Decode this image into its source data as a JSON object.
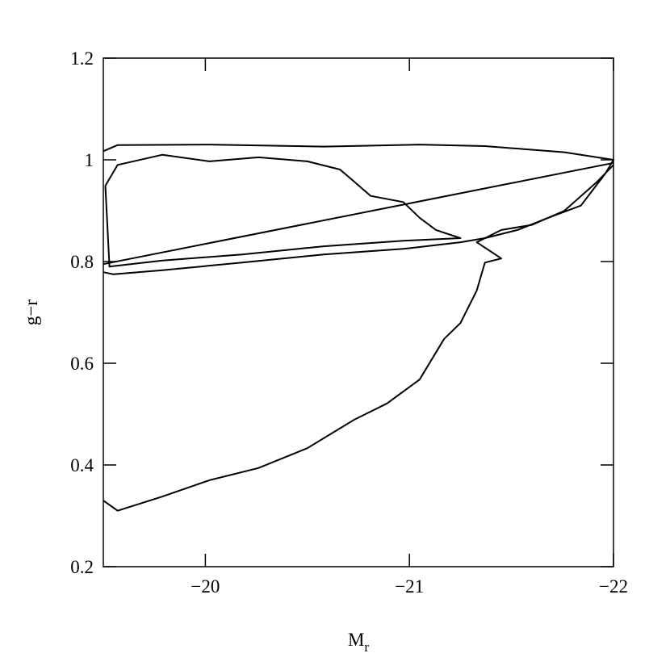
{
  "chart_data": {
    "type": "line",
    "xlabel": {
      "text": "M",
      "subscript": "r"
    },
    "ylabel": "g−r",
    "xlim": [
      -19.5,
      -22
    ],
    "ylim": [
      0.2,
      1.2
    ],
    "xticks": [
      {
        "value": -20,
        "label": "−20"
      },
      {
        "value": -21,
        "label": "−21"
      },
      {
        "value": -22,
        "label": "−22"
      }
    ],
    "yticks": [
      0.2,
      0.4,
      0.6,
      0.8,
      1,
      1.2
    ],
    "series": [
      {
        "color": "#000000",
        "x": [
          -19.5,
          -19.57,
          -20.02,
          -20.58,
          -21.05,
          -21.37,
          -21.76,
          -22.0,
          -21.96,
          -21.84,
          -21.68,
          -21.53,
          -21.37,
          -21.25,
          -20.97,
          -20.58,
          -20.18,
          -19.79,
          -19.55,
          -19.5
        ],
        "values": [
          1.017,
          1.029,
          1.03,
          1.026,
          1.03,
          1.027,
          1.015,
          1.0,
          0.973,
          0.91,
          0.886,
          0.862,
          0.846,
          0.838,
          0.825,
          0.814,
          0.798,
          0.783,
          0.775,
          0.779
        ]
      },
      {
        "color": "#000000",
        "x": [
          -19.51,
          -19.57,
          -19.79,
          -20.02,
          -20.26,
          -20.5,
          -20.66,
          -20.73,
          -20.81,
          -20.97,
          -21.05,
          -21.13,
          -21.25,
          -20.97,
          -20.58,
          -20.18,
          -19.79,
          -19.53,
          -19.51
        ],
        "values": [
          0.949,
          0.99,
          1.01,
          0.997,
          1.005,
          0.997,
          0.981,
          0.957,
          0.929,
          0.917,
          0.886,
          0.862,
          0.846,
          0.841,
          0.83,
          0.814,
          0.802,
          0.79,
          0.949
        ]
      },
      {
        "color": "#000000",
        "x": [
          -19.5,
          -19.57,
          -19.79,
          -20.02,
          -20.26,
          -20.5,
          -20.73,
          -20.89,
          -21.05,
          -21.17,
          -21.25,
          -21.33,
          -21.37,
          -21.45,
          -21.33,
          -21.45,
          -21.6,
          -21.76,
          -21.92,
          -22.0
        ],
        "values": [
          0.33,
          0.31,
          0.338,
          0.37,
          0.394,
          0.433,
          0.489,
          0.521,
          0.568,
          0.648,
          0.679,
          0.743,
          0.798,
          0.806,
          0.838,
          0.862,
          0.872,
          0.9,
          0.957,
          0.99
        ]
      },
      {
        "color": "#000000",
        "x": [
          -19.5,
          -22
        ],
        "values": [
          0.795,
          0.994
        ]
      }
    ]
  }
}
